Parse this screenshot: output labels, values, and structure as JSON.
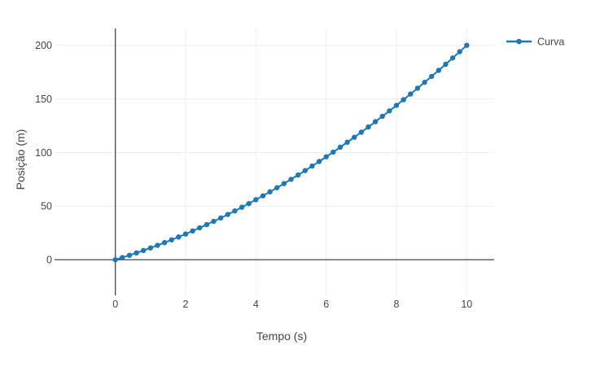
{
  "chart_data": {
    "type": "line",
    "mode": "lines+markers",
    "title": "",
    "xlabel": "Tempo (s)",
    "ylabel": "Posição (m)",
    "series": [
      {
        "name": "Curva",
        "color": "#1f77b4",
        "x": [
          0,
          0.2,
          0.4,
          0.6,
          0.8,
          1,
          1.2,
          1.4,
          1.6,
          1.8,
          2,
          2.2,
          2.4,
          2.6,
          2.8,
          3,
          3.2,
          3.4,
          3.6,
          3.8,
          4,
          4.2,
          4.4,
          4.6,
          4.8,
          5,
          5.2,
          5.4,
          5.6,
          5.8,
          6,
          6.2,
          6.4,
          6.6,
          6.8,
          7,
          7.2,
          7.4,
          7.6,
          7.8,
          8,
          8.2,
          8.4,
          8.6,
          8.8,
          9,
          9.2,
          9.4,
          9.6,
          9.8,
          10
        ],
        "y": [
          0,
          2.04,
          4.16,
          6.36,
          8.64,
          11,
          13.44,
          15.96,
          18.56,
          21.24,
          24,
          26.84,
          29.76,
          32.76,
          35.84,
          39,
          42.24,
          45.56,
          48.96,
          52.44,
          56,
          59.64,
          63.36,
          67.16,
          71.04,
          75,
          79.04,
          83.16,
          87.36,
          91.64,
          96,
          100.44,
          104.96,
          109.56,
          114.24,
          119,
          123.84,
          128.76,
          133.76,
          138.84,
          144,
          149.24,
          154.56,
          159.96,
          165.44,
          171,
          176.64,
          182.36,
          188.16,
          194.04,
          200
        ]
      }
    ],
    "xticks": [
      0,
      2,
      4,
      6,
      8,
      10
    ],
    "yticks": [
      0,
      50,
      100,
      150,
      200
    ],
    "xlim": [
      -1.73,
      10.78
    ],
    "ylim": [
      -33.2,
      215.7
    ],
    "grid": true,
    "zerolines": true,
    "legend_position": "top-right-outside",
    "colors": {
      "series": "#1f77b4",
      "grid": "#eeeeee",
      "zeroline": "#444444",
      "text": "#444444",
      "background": "#ffffff"
    }
  },
  "legend": {
    "label": "Curva"
  }
}
